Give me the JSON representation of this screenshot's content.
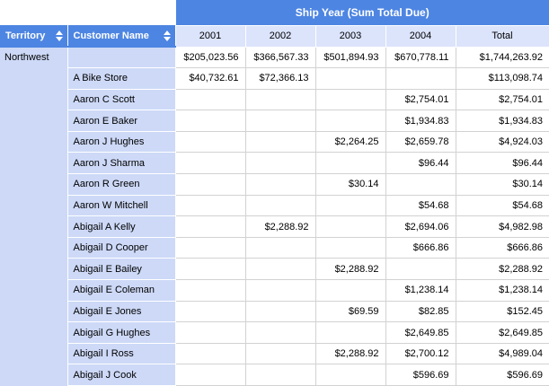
{
  "pivot": {
    "band_title": "Ship Year (Sum Total Due)",
    "row_fields": [
      {
        "label": "Territory"
      },
      {
        "label": "Customer Name"
      }
    ],
    "column_headers": [
      "2001",
      "2002",
      "2003",
      "2004",
      "Total"
    ],
    "territory": "Northwest",
    "rows": [
      {
        "customer": "",
        "values": [
          "$205,023.56",
          "$366,567.33",
          "$501,894.93",
          "$670,778.11",
          "$1,744,263.92"
        ]
      },
      {
        "customer": "A Bike Store",
        "values": [
          "$40,732.61",
          "$72,366.13",
          "",
          "",
          "$113,098.74"
        ]
      },
      {
        "customer": "Aaron C Scott",
        "values": [
          "",
          "",
          "",
          "$2,754.01",
          "$2,754.01"
        ]
      },
      {
        "customer": "Aaron E Baker",
        "values": [
          "",
          "",
          "",
          "$1,934.83",
          "$1,934.83"
        ]
      },
      {
        "customer": "Aaron J Hughes",
        "values": [
          "",
          "",
          "$2,264.25",
          "$2,659.78",
          "$4,924.03"
        ]
      },
      {
        "customer": "Aaron J Sharma",
        "values": [
          "",
          "",
          "",
          "$96.44",
          "$96.44"
        ]
      },
      {
        "customer": "Aaron R Green",
        "values": [
          "",
          "",
          "$30.14",
          "",
          "$30.14"
        ]
      },
      {
        "customer": "Aaron W Mitchell",
        "values": [
          "",
          "",
          "",
          "$54.68",
          "$54.68"
        ]
      },
      {
        "customer": "Abigail A Kelly",
        "values": [
          "",
          "$2,288.92",
          "",
          "$2,694.06",
          "$4,982.98"
        ]
      },
      {
        "customer": "Abigail D Cooper",
        "values": [
          "",
          "",
          "",
          "$666.86",
          "$666.86"
        ]
      },
      {
        "customer": "Abigail E Bailey",
        "values": [
          "",
          "",
          "$2,288.92",
          "",
          "$2,288.92"
        ]
      },
      {
        "customer": "Abigail E Coleman",
        "values": [
          "",
          "",
          "",
          "$1,238.14",
          "$1,238.14"
        ]
      },
      {
        "customer": "Abigail E Jones",
        "values": [
          "",
          "",
          "$69.59",
          "$82.85",
          "$152.45"
        ]
      },
      {
        "customer": "Abigail G Hughes",
        "values": [
          "",
          "",
          "",
          "$2,649.85",
          "$2,649.85"
        ]
      },
      {
        "customer": "Abigail I Ross",
        "values": [
          "",
          "",
          "$2,288.92",
          "$2,700.12",
          "$4,989.04"
        ]
      },
      {
        "customer": "Abigail J Cook",
        "values": [
          "",
          "",
          "",
          "$596.69",
          "$596.69"
        ]
      }
    ],
    "colors": {
      "header_blue": "#4d85e2",
      "header_light": "#dbe4fb",
      "label_bg": "#cdd9f7",
      "grid_line": "#d2d2d2"
    }
  }
}
